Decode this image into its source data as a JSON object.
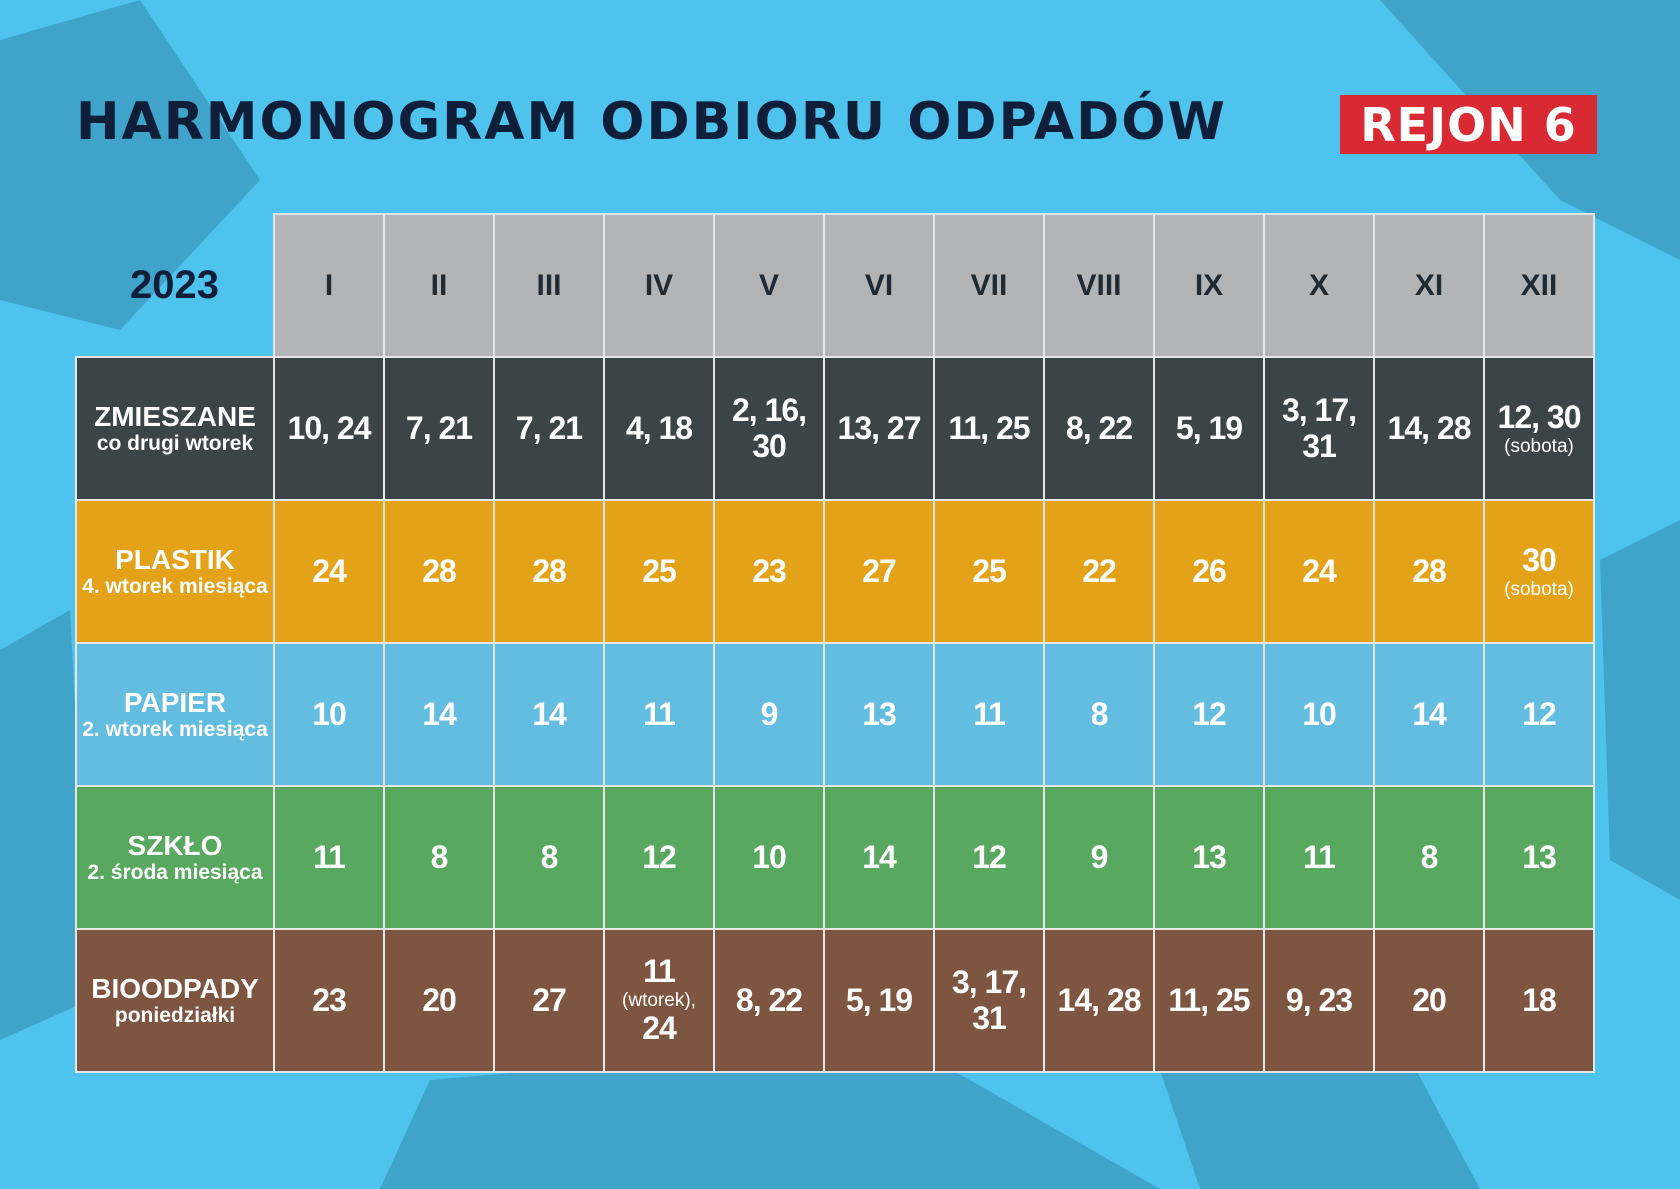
{
  "header": {
    "title": "HARMONOGRAM ODBIORU ODPADÓW",
    "region": "REJON 6"
  },
  "colors": {
    "background": "#4ec3ee",
    "title": "#0f1f3a",
    "region_badge": "#d92a34",
    "month_header": "#b3b4b5",
    "zmieszane": "#3b4447",
    "plastik": "#e4a218",
    "papier": "#62bde0",
    "szklo": "#59a860",
    "bioodpady": "#7d5540"
  },
  "table": {
    "year": "2023",
    "months": [
      "I",
      "II",
      "III",
      "IV",
      "V",
      "VI",
      "VII",
      "VIII",
      "IX",
      "X",
      "XI",
      "XII"
    ],
    "rows": [
      {
        "name": "ZMIESZANE",
        "sub": "co drugi wtorek",
        "values": [
          {
            "text": "10, 24"
          },
          {
            "text": "7, 21"
          },
          {
            "text": "7, 21"
          },
          {
            "text": "4, 18"
          },
          {
            "text": "2, 16, 30"
          },
          {
            "text": "13, 27"
          },
          {
            "text": "11, 25"
          },
          {
            "text": "8, 22"
          },
          {
            "text": "5, 19"
          },
          {
            "text": "3, 17, 31"
          },
          {
            "text": "14, 28"
          },
          {
            "text": "12, 30",
            "note": "(sobota)"
          }
        ]
      },
      {
        "name": "PLASTIK",
        "sub": "4. wtorek miesiąca",
        "values": [
          {
            "text": "24"
          },
          {
            "text": "28"
          },
          {
            "text": "28"
          },
          {
            "text": "25"
          },
          {
            "text": "23"
          },
          {
            "text": "27"
          },
          {
            "text": "25"
          },
          {
            "text": "22"
          },
          {
            "text": "26"
          },
          {
            "text": "24"
          },
          {
            "text": "28"
          },
          {
            "text": "30",
            "note": "(sobota)"
          }
        ]
      },
      {
        "name": "PAPIER",
        "sub": "2. wtorek miesiąca",
        "values": [
          {
            "text": "10"
          },
          {
            "text": "14"
          },
          {
            "text": "14"
          },
          {
            "text": "11"
          },
          {
            "text": "9"
          },
          {
            "text": "13"
          },
          {
            "text": "11"
          },
          {
            "text": "8"
          },
          {
            "text": "12"
          },
          {
            "text": "10"
          },
          {
            "text": "14"
          },
          {
            "text": "12"
          }
        ]
      },
      {
        "name": "SZKŁO",
        "sub": "2. środa miesiąca",
        "values": [
          {
            "text": "11"
          },
          {
            "text": "8"
          },
          {
            "text": "8"
          },
          {
            "text": "12"
          },
          {
            "text": "10"
          },
          {
            "text": "14"
          },
          {
            "text": "12"
          },
          {
            "text": "9"
          },
          {
            "text": "13"
          },
          {
            "text": "11"
          },
          {
            "text": "8"
          },
          {
            "text": "13"
          }
        ]
      },
      {
        "name": "BIOODPADY",
        "sub": "poniedziałki",
        "values": [
          {
            "text": "23"
          },
          {
            "text": "20"
          },
          {
            "text": "27"
          },
          {
            "text": "11",
            "note": "(wtorek),",
            "text2": "24"
          },
          {
            "text": "8, 22"
          },
          {
            "text": "5, 19"
          },
          {
            "text": "3, 17, 31"
          },
          {
            "text": "14, 28"
          },
          {
            "text": "11, 25"
          },
          {
            "text": "9, 23"
          },
          {
            "text": "20"
          },
          {
            "text": "18"
          }
        ]
      }
    ]
  }
}
